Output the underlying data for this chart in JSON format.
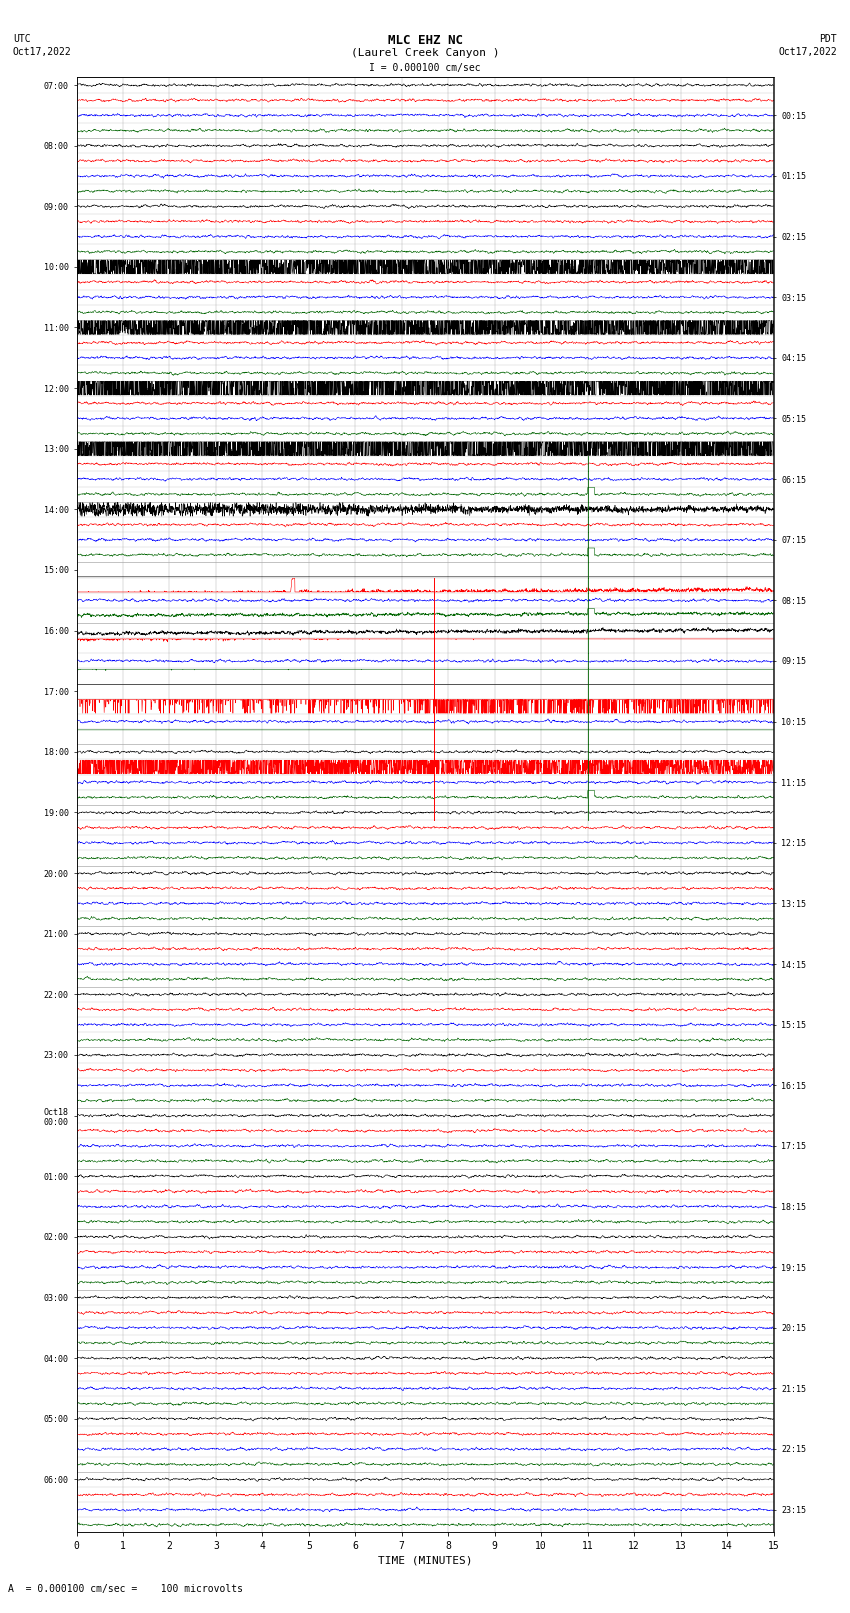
{
  "title_line1": "MLC EHZ NC",
  "title_line2": "(Laurel Creek Canyon )",
  "title_scale": "I = 0.000100 cm/sec",
  "utc_label": "UTC",
  "utc_date": "Oct17,2022",
  "pdt_label": "PDT",
  "pdt_date": "Oct17,2022",
  "xlabel": "TIME (MINUTES)",
  "bottom_label": "A  = 0.000100 cm/sec =    100 microvolts",
  "n_rows": 96,
  "x_min": 0,
  "x_max": 15,
  "left_times_major": [
    "07:00",
    "08:00",
    "09:00",
    "10:00",
    "11:00",
    "12:00",
    "13:00",
    "14:00",
    "15:00",
    "16:00",
    "17:00",
    "18:00",
    "19:00",
    "20:00",
    "21:00",
    "22:00",
    "23:00",
    "Oct18\n00:00",
    "01:00",
    "02:00",
    "03:00",
    "04:00",
    "05:00",
    "06:00"
  ],
  "right_times_major": [
    "00:15",
    "01:15",
    "02:15",
    "03:15",
    "04:15",
    "05:15",
    "06:15",
    "07:15",
    "08:15",
    "09:15",
    "10:15",
    "11:15",
    "12:15",
    "13:15",
    "14:15",
    "15:15",
    "16:15",
    "17:15",
    "18:15",
    "19:15",
    "20:15",
    "21:15",
    "22:15",
    "23:15"
  ],
  "colors_cycle": [
    "#000000",
    "#ff0000",
    "#0000ff",
    "#006400"
  ],
  "background": "#ffffff",
  "grid_color": "#aaaaaa"
}
